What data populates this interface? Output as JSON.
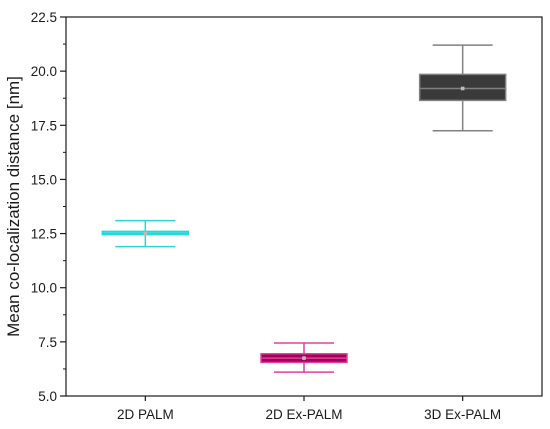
{
  "chart_data": {
    "type": "box",
    "ylabel": "Mean co-localization distance [nm]",
    "xlabel": "",
    "ylim": [
      5.0,
      22.5
    ],
    "yticks": [
      5.0,
      7.5,
      10.0,
      12.5,
      15.0,
      17.5,
      20.0,
      22.5
    ],
    "ytick_labels": [
      "5.0",
      "7.5",
      "10.0",
      "12.5",
      "15.0",
      "17.5",
      "20.0",
      "22.5"
    ],
    "categories": [
      "2D PALM",
      "2D Ex-PALM",
      "3D Ex-PALM"
    ],
    "grid": false,
    "legend": "none",
    "boxes": [
      {
        "category": "2D PALM",
        "whisker_low": 11.9,
        "q1": 12.45,
        "median": 12.5,
        "q3": 12.6,
        "whisker_high": 13.1,
        "mean": 12.5,
        "color": "#2ad6d6",
        "fill": "#3fe0e0"
      },
      {
        "category": "2D Ex-PALM",
        "whisker_low": 6.1,
        "q1": 6.55,
        "median": 6.75,
        "q3": 6.95,
        "whisker_high": 7.45,
        "mean": 6.75,
        "color": "#e0409a",
        "fill": "#a0005a"
      },
      {
        "category": "3D Ex-PALM",
        "whisker_low": 17.25,
        "q1": 18.65,
        "median": 19.2,
        "q3": 19.85,
        "whisker_high": 21.2,
        "mean": 19.2,
        "color": "#808080",
        "fill": "#3a3a3a"
      }
    ]
  }
}
